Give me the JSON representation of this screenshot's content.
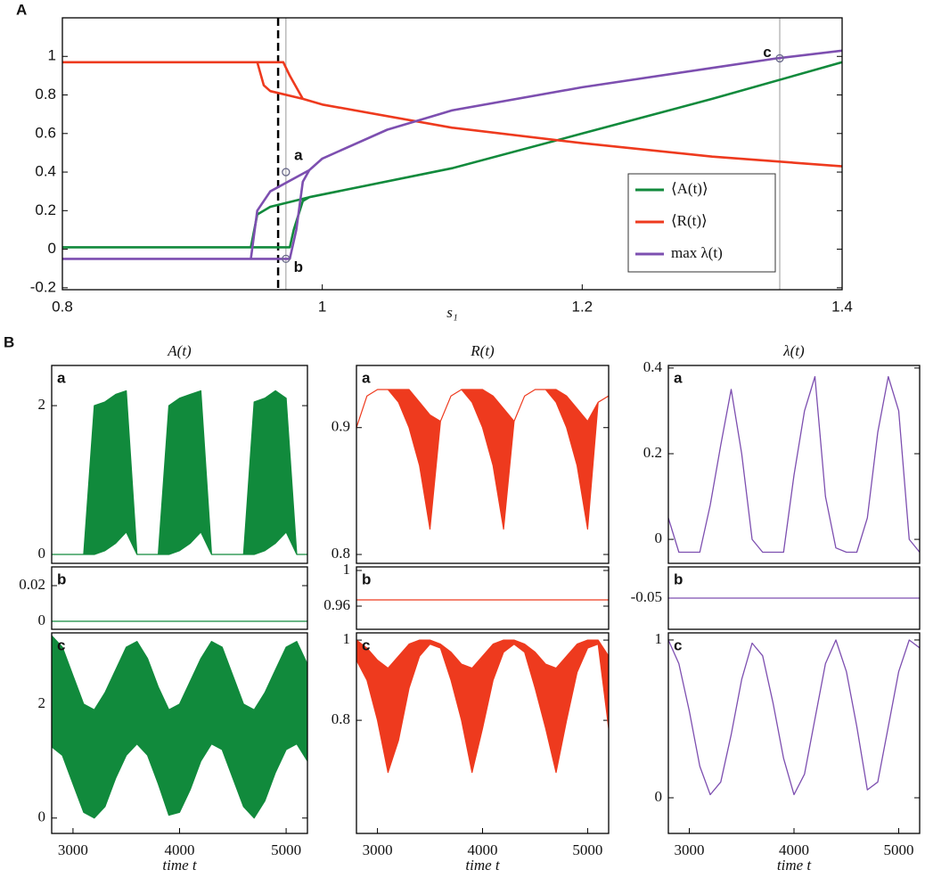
{
  "chart_data": [
    {
      "type": "line",
      "panel_label": "A",
      "xlabel": "s₁",
      "xlim": [
        0.8,
        1.4
      ],
      "xticks": [
        0.8,
        1,
        1.2,
        1.4
      ],
      "ylim": [
        -0.21,
        1.2
      ],
      "yticks": [
        -0.2,
        0,
        0.2,
        0.4,
        0.6,
        0.8,
        1
      ],
      "legend": "lower right",
      "vlines": [
        {
          "x": 0.966,
          "dashed": true,
          "color": "#000000"
        },
        {
          "x": 0.972,
          "dashed": false,
          "color": "#aaaaaa"
        },
        {
          "x": 1.352,
          "dashed": false,
          "color": "#aaaaaa"
        }
      ],
      "annotations": [
        {
          "text": "a",
          "x": 0.972,
          "y": 0.4
        },
        {
          "text": "b",
          "x": 0.972,
          "y": -0.05
        },
        {
          "text": "c",
          "x": 1.352,
          "y": 0.99
        }
      ],
      "series": [
        {
          "name": "⟨A(t)⟩",
          "color": "#118a3c",
          "x": [
            0.8,
            0.975,
            0.978,
            0.985,
            0.99,
            1.1,
            1.2,
            1.3,
            1.4,
            null,
            0.99,
            0.96,
            0.95,
            0.945
          ],
          "values": [
            0.01,
            0.01,
            0.1,
            0.25,
            0.27,
            0.42,
            0.6,
            0.78,
            0.97,
            null,
            0.27,
            0.22,
            0.18,
            0.01
          ]
        },
        {
          "name": "⟨R(t)⟩",
          "color": "#ee3a1e",
          "x": [
            0.8,
            0.97,
            0.975,
            0.985,
            1.0,
            1.1,
            1.2,
            1.3,
            1.4,
            null,
            0.985,
            0.96,
            0.955,
            0.95
          ],
          "values": [
            0.97,
            0.97,
            0.9,
            0.78,
            0.75,
            0.63,
            0.55,
            0.48,
            0.43,
            null,
            0.78,
            0.82,
            0.85,
            0.97
          ]
        },
        {
          "name": "max λ(t)",
          "color": "#7d4fb0",
          "x": [
            0.8,
            0.975,
            0.98,
            0.985,
            0.99,
            1.0,
            1.05,
            1.1,
            1.2,
            1.3,
            1.35,
            1.4,
            null,
            0.99,
            0.96,
            0.95,
            0.945
          ],
          "values": [
            -0.05,
            -0.05,
            0.1,
            0.35,
            0.41,
            0.47,
            0.62,
            0.72,
            0.84,
            0.94,
            0.99,
            1.03,
            null,
            0.41,
            0.3,
            0.2,
            -0.05
          ]
        }
      ]
    },
    {
      "type": "range",
      "panel_label": "B",
      "title": "A(t)",
      "tag": "a",
      "xlim": [
        2800,
        5200
      ],
      "ylim": [
        -0.12,
        2.54
      ],
      "yticks": [
        0,
        2
      ],
      "x": [
        2800,
        2900,
        3000,
        3100,
        3200,
        3300,
        3400,
        3500,
        3600,
        3700,
        3800,
        3900,
        4000,
        4100,
        4200,
        4300,
        4400,
        4500,
        4600,
        4700,
        4800,
        4900,
        5000,
        5100,
        5200
      ],
      "series": [
        {
          "color": "#118a3c",
          "values": [
            0,
            0,
            0,
            0,
            2.0,
            2.05,
            2.15,
            2.2,
            0,
            0,
            0,
            2.0,
            2.1,
            2.15,
            2.2,
            0,
            0,
            0,
            0,
            2.05,
            2.1,
            2.2,
            2.1,
            0,
            0
          ],
          "lower": [
            0,
            0,
            0,
            0,
            0,
            0.05,
            0.15,
            0.3,
            0,
            0,
            0,
            0,
            0.05,
            0.15,
            0.3,
            0,
            0,
            0,
            0,
            0,
            0.05,
            0.15,
            0.3,
            0,
            0
          ]
        }
      ]
    },
    {
      "type": "range",
      "title": "R(t)",
      "tag": "a",
      "xlim": [
        2800,
        5200
      ],
      "ylim": [
        0.793,
        0.949
      ],
      "yticks": [
        0.8,
        0.9
      ],
      "x": [
        2800,
        2900,
        3000,
        3100,
        3200,
        3300,
        3400,
        3500,
        3600,
        3700,
        3800,
        3900,
        4000,
        4100,
        4200,
        4300,
        4400,
        4500,
        4600,
        4700,
        4800,
        4900,
        5000,
        5100,
        5200
      ],
      "series": [
        {
          "color": "#ee3a1e",
          "values": [
            0.9,
            0.925,
            0.93,
            0.93,
            0.93,
            0.93,
            0.92,
            0.91,
            0.905,
            0.925,
            0.93,
            0.93,
            0.93,
            0.925,
            0.915,
            0.905,
            0.925,
            0.93,
            0.93,
            0.93,
            0.925,
            0.915,
            0.905,
            0.92,
            0.925
          ],
          "lower": [
            0.9,
            0.925,
            0.93,
            0.93,
            0.92,
            0.9,
            0.87,
            0.82,
            0.905,
            0.925,
            0.93,
            0.92,
            0.9,
            0.87,
            0.82,
            0.905,
            0.925,
            0.93,
            0.93,
            0.92,
            0.9,
            0.87,
            0.82,
            0.92,
            0.925
          ]
        }
      ]
    },
    {
      "type": "line",
      "title": "λ(t)",
      "tag": "a",
      "xlim": [
        2800,
        5200
      ],
      "ylim": [
        -0.056,
        0.406
      ],
      "yticks": [
        0,
        0.2,
        0.4
      ],
      "x": [
        2800,
        2900,
        3000,
        3100,
        3200,
        3300,
        3400,
        3500,
        3600,
        3700,
        3800,
        3900,
        4000,
        4100,
        4200,
        4300,
        4400,
        4500,
        4600,
        4700,
        4800,
        4900,
        5000,
        5100,
        5200
      ],
      "series": [
        {
          "color": "#7d4fb0",
          "values": [
            0.05,
            -0.03,
            -0.03,
            -0.03,
            0.08,
            0.22,
            0.35,
            0.2,
            0,
            -0.03,
            -0.03,
            -0.03,
            0.15,
            0.3,
            0.38,
            0.1,
            -0.02,
            -0.03,
            -0.03,
            0.05,
            0.25,
            0.38,
            0.3,
            0,
            -0.03
          ]
        }
      ]
    },
    {
      "type": "line",
      "tag": "b",
      "xlim": [
        2800,
        5200
      ],
      "ylim": [
        -0.0045,
        0.0305
      ],
      "yticks": [
        0,
        0.02
      ],
      "x": [
        2800,
        5200
      ],
      "series": [
        {
          "color": "#118a3c",
          "values": [
            0,
            0
          ]
        }
      ]
    },
    {
      "type": "line",
      "tag": "b",
      "xlim": [
        2800,
        5200
      ],
      "ylim": [
        0.934,
        1.004
      ],
      "yticks": [
        0.96,
        1
      ],
      "x": [
        2800,
        5200
      ],
      "series": [
        {
          "color": "#ee3a1e",
          "values": [
            0.967,
            0.967
          ]
        }
      ]
    },
    {
      "type": "line",
      "tag": "b",
      "xlim": [
        2800,
        5200
      ],
      "ylim": [
        -0.075,
        -0.025
      ],
      "yticks": [
        -0.05
      ],
      "x": [
        2800,
        5200
      ],
      "series": [
        {
          "color": "#7d4fb0",
          "values": [
            -0.05,
            -0.05
          ]
        }
      ]
    },
    {
      "type": "range",
      "tag": "c",
      "xlabel": "time t",
      "xlim": [
        2800,
        5200
      ],
      "xticks": [
        3000,
        4000,
        5000
      ],
      "ylim": [
        -0.27,
        3.25
      ],
      "yticks": [
        0,
        2
      ],
      "x": [
        2800,
        2900,
        3000,
        3100,
        3200,
        3300,
        3400,
        3500,
        3600,
        3700,
        3800,
        3900,
        4000,
        4100,
        4200,
        4300,
        4400,
        4500,
        4600,
        4700,
        4800,
        4900,
        5000,
        5100,
        5200
      ],
      "series": [
        {
          "color": "#118a3c",
          "values": [
            3.2,
            3.0,
            2.5,
            2.0,
            1.9,
            2.2,
            2.6,
            3.0,
            3.1,
            2.8,
            2.3,
            1.9,
            2.0,
            2.4,
            2.8,
            3.1,
            3.0,
            2.5,
            2.0,
            1.9,
            2.2,
            2.6,
            3.0,
            3.1,
            2.7
          ],
          "lower": [
            1.25,
            1.1,
            0.6,
            0.1,
            0,
            0.2,
            0.7,
            1.1,
            1.3,
            1.1,
            0.6,
            0.05,
            0.1,
            0.5,
            1.0,
            1.3,
            1.2,
            0.7,
            0.2,
            0,
            0.3,
            0.8,
            1.2,
            1.3,
            1.0
          ]
        }
      ]
    },
    {
      "type": "range",
      "tag": "c",
      "xlabel": "time t",
      "xlim": [
        2800,
        5200
      ],
      "xticks": [
        3000,
        4000,
        5000
      ],
      "ylim": [
        0.518,
        1.018
      ],
      "yticks": [
        0.8,
        1
      ],
      "x": [
        2800,
        2900,
        3000,
        3100,
        3200,
        3300,
        3400,
        3500,
        3600,
        3700,
        3800,
        3900,
        4000,
        4100,
        4200,
        4300,
        4400,
        4500,
        4600,
        4700,
        4800,
        4900,
        5000,
        5100,
        5200
      ],
      "series": [
        {
          "color": "#ee3a1e",
          "values": [
            1.0,
            0.98,
            0.95,
            0.93,
            0.96,
            0.99,
            1.0,
            1.0,
            0.99,
            0.97,
            0.94,
            0.93,
            0.96,
            0.99,
            1.0,
            1.0,
            0.99,
            0.97,
            0.94,
            0.93,
            0.96,
            0.99,
            1.0,
            1.0,
            0.96
          ],
          "lower": [
            0.95,
            0.9,
            0.8,
            0.67,
            0.75,
            0.88,
            0.96,
            0.99,
            0.98,
            0.9,
            0.8,
            0.67,
            0.78,
            0.9,
            0.97,
            0.99,
            0.97,
            0.88,
            0.78,
            0.67,
            0.8,
            0.92,
            0.98,
            0.99,
            0.78
          ]
        }
      ]
    },
    {
      "type": "line",
      "tag": "c",
      "xlabel": "time t",
      "xlim": [
        2800,
        5200
      ],
      "xticks": [
        3000,
        4000,
        5000
      ],
      "ylim": [
        -0.226,
        1.045
      ],
      "yticks": [
        0,
        1
      ],
      "x": [
        2800,
        2900,
        3000,
        3100,
        3200,
        3300,
        3400,
        3500,
        3600,
        3700,
        3800,
        3900,
        4000,
        4100,
        4200,
        4300,
        4400,
        4500,
        4600,
        4700,
        4800,
        4900,
        5000,
        5100,
        5200
      ],
      "series": [
        {
          "color": "#7d4fb0",
          "values": [
            1.0,
            0.85,
            0.55,
            0.2,
            0.02,
            0.1,
            0.4,
            0.75,
            0.98,
            0.9,
            0.6,
            0.25,
            0.02,
            0.15,
            0.5,
            0.85,
            1.0,
            0.8,
            0.45,
            0.05,
            0.1,
            0.45,
            0.8,
            1.0,
            0.95
          ]
        }
      ]
    }
  ]
}
